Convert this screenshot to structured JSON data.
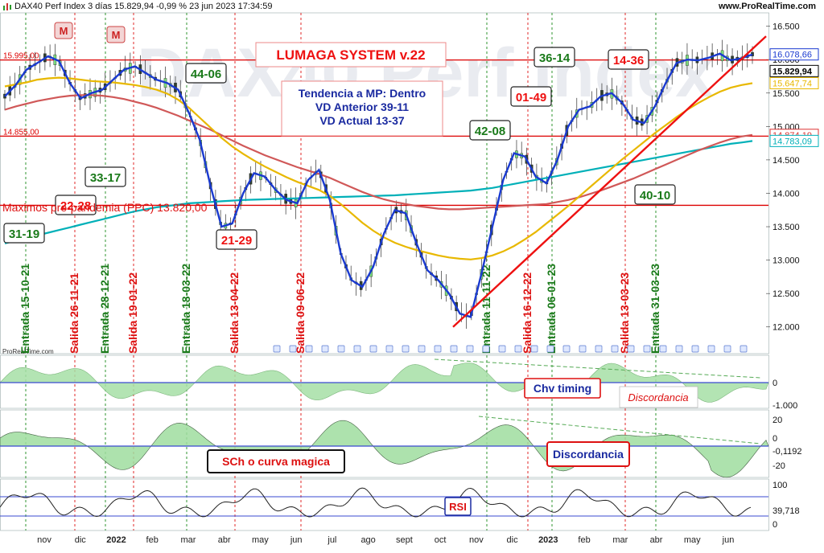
{
  "header": {
    "title": "DAX40 Perf Index 3 días 15.829,94 -0,99 % 23 jun 2023 17:34:59",
    "site": "www.ProRealTime.com",
    "watermark": "DAX40 Perf Index",
    "panel_watermark": "ProRealTime.com"
  },
  "boxes": {
    "system": "LUMAGA SYSTEM v.22",
    "trend_lines": [
      "Tendencia a MP: Dentro",
      "VD Anterior 39-11",
      "VD Actual 13-37"
    ],
    "max_label": "Maximos pre-pandemia (PPC) 13.820,00",
    "chv": "Chv timing",
    "discord1": "Discordancia",
    "sch": "SCh o curva magica",
    "discord2": "Discordancia",
    "rsi": "RSI"
  },
  "scores": [
    {
      "text": "31-19",
      "color": "green"
    },
    {
      "text": "33-17",
      "color": "green"
    },
    {
      "text": "22-28",
      "color": "red"
    },
    {
      "text": "44-06",
      "color": "green"
    },
    {
      "text": "21-29",
      "color": "red"
    },
    {
      "text": "42-08",
      "color": "green"
    },
    {
      "text": "01-49",
      "color": "red"
    },
    {
      "text": "36-14",
      "color": "green"
    },
    {
      "text": "14-36",
      "color": "red"
    },
    {
      "text": "40-10",
      "color": "green"
    }
  ],
  "m_markers": [
    "M",
    "M"
  ],
  "signals": [
    {
      "label": "Entrada 15-10-21",
      "type": "entry"
    },
    {
      "label": "Salida 26-11-21",
      "type": "exit"
    },
    {
      "label": "Entrada 28-12-21",
      "type": "entry"
    },
    {
      "label": "Salida 19-01-22",
      "type": "exit"
    },
    {
      "label": "Entrada 18-03-22",
      "type": "entry"
    },
    {
      "label": "Salida 13-04-22",
      "type": "exit"
    },
    {
      "label": "Salida 09-06-22",
      "type": "exit"
    },
    {
      "label": "Entrada 11-11-22",
      "type": "entry"
    },
    {
      "label": "Salida 16-12-22",
      "type": "exit"
    },
    {
      "label": "Entrada 06-01-23",
      "type": "entry"
    },
    {
      "label": "Salida 13-03-23",
      "type": "exit"
    },
    {
      "label": "Entrada 31-03-23",
      "type": "entry"
    }
  ],
  "chart_data": {
    "type": "line",
    "price_axis_ticks": [
      "16.500",
      "16.000",
      "15.500",
      "15.000",
      "14.500",
      "14.000",
      "13.500",
      "13.000",
      "12.500",
      "12.000"
    ],
    "price_ylim": [
      11600,
      16700
    ],
    "price_levels": [
      {
        "label": "15.995,00",
        "value": 15995,
        "color": "#dd0000"
      },
      {
        "label": "14.855,00",
        "value": 14855,
        "color": "#dd0000"
      },
      {
        "value": 13820,
        "color": "#dd0000"
      }
    ],
    "price_tags": [
      {
        "label": "16.078,66",
        "value": 16078.66,
        "color": "#1a3ad0"
      },
      {
        "label": "15.829,94",
        "value": 15829.94,
        "color": "#000000"
      },
      {
        "label": "15.647,74",
        "value": 15647.74,
        "color": "#e8b800"
      },
      {
        "label": "14.874,19",
        "value": 14874.19,
        "color": "#dd3333"
      },
      {
        "label": "14.783,09",
        "value": 14783.09,
        "color": "#00b0b8"
      }
    ],
    "x_labels": [
      "nov",
      "dic",
      "2022",
      "feb",
      "mar",
      "abr",
      "may",
      "jun",
      "jul",
      "ago",
      "sept",
      "oct",
      "nov",
      "dic",
      "2023",
      "feb",
      "mar",
      "abr",
      "may",
      "jun"
    ],
    "series": [
      {
        "color": "#1a3ad0",
        "values": [
          15450,
          15620,
          15850,
          15950,
          16050,
          15980,
          15650,
          15420,
          15500,
          15550,
          15700,
          15850,
          15900,
          15800,
          15700,
          15650,
          15550,
          15200,
          14800,
          14100,
          13500,
          13550,
          14000,
          14300,
          14250,
          14050,
          13900,
          13850,
          14200,
          14350,
          13900,
          13100,
          12700,
          12600,
          12900,
          13400,
          13750,
          13700,
          13250,
          12850,
          12700,
          12500,
          12200,
          12150,
          12800,
          13500,
          14200,
          14600,
          14550,
          14250,
          14150,
          14500,
          15000,
          15250,
          15300,
          15450,
          15500,
          15350,
          15100,
          15050,
          15300,
          15650,
          15950,
          16000,
          15990,
          16030,
          16090,
          15990,
          16020,
          16078
        ]
      },
      {
        "color": "#e8b800",
        "values": [
          15600,
          15630,
          15660,
          15700,
          15720,
          15730,
          15720,
          15700,
          15680,
          15670,
          15660,
          15640,
          15620,
          15590,
          15550,
          15490,
          15400,
          15280,
          15130,
          14980,
          14830,
          14700,
          14590,
          14490,
          14400,
          14320,
          14240,
          14170,
          14110,
          14050,
          13960,
          13840,
          13700,
          13560,
          13440,
          13340,
          13260,
          13200,
          13150,
          13110,
          13070,
          13040,
          13020,
          13010,
          13030,
          13070,
          13130,
          13210,
          13310,
          13420,
          13550,
          13680,
          13810,
          13950,
          14090,
          14230,
          14370,
          14510,
          14640,
          14770,
          14900,
          15020,
          15140,
          15250,
          15350,
          15440,
          15520,
          15580,
          15620,
          15648
        ]
      },
      {
        "color": "#d05858",
        "values": [
          15250,
          15300,
          15340,
          15380,
          15410,
          15440,
          15460,
          15470,
          15470,
          15460,
          15440,
          15410,
          15370,
          15330,
          15280,
          15220,
          15160,
          15090,
          15020,
          14950,
          14870,
          14790,
          14710,
          14640,
          14570,
          14510,
          14450,
          14390,
          14340,
          14290,
          14230,
          14160,
          14090,
          14020,
          13960,
          13910,
          13870,
          13840,
          13810,
          13790,
          13770,
          13760,
          13760,
          13770,
          13780,
          13790,
          13800,
          13810,
          13820,
          13830,
          13840,
          13870,
          13900,
          13940,
          13990,
          14040,
          14100,
          14160,
          14220,
          14290,
          14360,
          14430,
          14500,
          14570,
          14640,
          14700,
          14760,
          14810,
          14850,
          14874
        ]
      },
      {
        "color": "#00b0b8",
        "values": [
          13250,
          13290,
          13330,
          13370,
          13410,
          13450,
          13490,
          13530,
          13570,
          13610,
          13650,
          13690,
          13730,
          13760,
          13790,
          13810,
          13830,
          13850,
          13860,
          13870,
          13880,
          13890,
          13900,
          13905,
          13910,
          13915,
          13920,
          13925,
          13930,
          13935,
          13940,
          13945,
          13950,
          13955,
          13960,
          13965,
          13970,
          13980,
          13990,
          14000,
          14010,
          14020,
          14030,
          14040,
          14060,
          14080,
          14110,
          14140,
          14170,
          14200,
          14230,
          14260,
          14290,
          14320,
          14350,
          14380,
          14410,
          14440,
          14470,
          14500,
          14530,
          14560,
          14590,
          14620,
          14650,
          14680,
          14710,
          14740,
          14760,
          14783
        ]
      }
    ],
    "chv_ticks": [
      "0",
      "-1.000"
    ],
    "sch_ticks": [
      "20",
      "0",
      "-0,1192",
      "-20"
    ],
    "rsi_ticks": [
      "100",
      "39,718",
      "0"
    ]
  }
}
